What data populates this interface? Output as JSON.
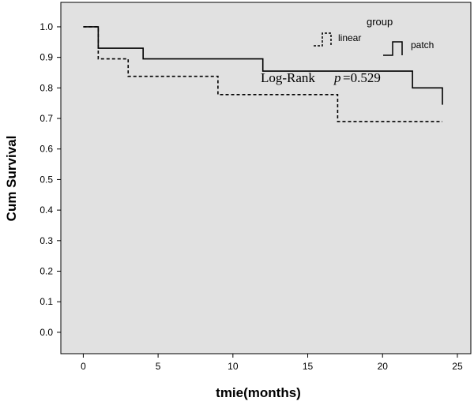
{
  "chart_data": {
    "type": "line",
    "step": true,
    "title": "",
    "xlabel": "tmie(months)",
    "ylabel": "Cum Survival",
    "xlim": [
      -1.5,
      25.9
    ],
    "ylim": [
      -0.07,
      1.08
    ],
    "x_ticks": [
      0,
      5,
      10,
      15,
      20,
      25
    ],
    "y_ticks": [
      0.0,
      0.1,
      0.2,
      0.3,
      0.4,
      0.5,
      0.6,
      0.7,
      0.8,
      0.9,
      1.0
    ],
    "grid": false,
    "background": "#e1e1e1",
    "legend": {
      "title": "group",
      "placement": "top-right",
      "entries": [
        "linear",
        "patch"
      ]
    },
    "series": [
      {
        "name": "linear",
        "style": "dashed",
        "color": "#000000",
        "x": [
          0,
          1,
          3,
          9,
          17,
          24
        ],
        "y": [
          1.0,
          0.895,
          0.838,
          0.778,
          0.69,
          0.69
        ]
      },
      {
        "name": "patch",
        "style": "solid",
        "color": "#000000",
        "x": [
          0,
          1,
          4,
          12,
          22,
          24
        ],
        "y": [
          1.0,
          0.93,
          0.895,
          0.855,
          0.8,
          0.745
        ]
      }
    ],
    "annotation": {
      "prefix": "Log-Rank",
      "p_symbol": "p",
      "p_value": "=0.529"
    }
  }
}
